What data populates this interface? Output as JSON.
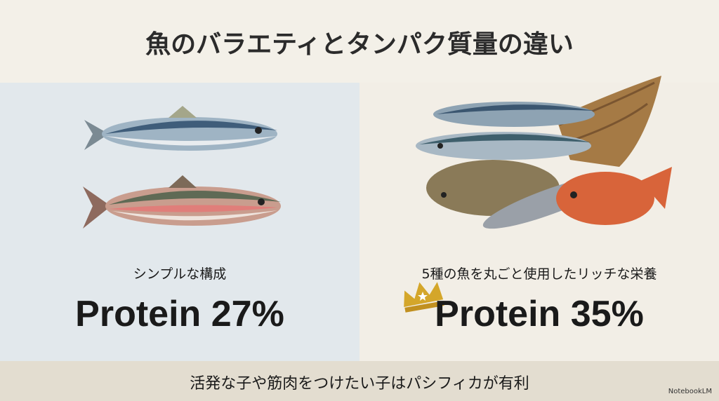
{
  "title": "魚のバラエティとタンパク質量の違い",
  "left": {
    "caption": "シンプルな構成",
    "protein": "Protein 27%"
  },
  "right": {
    "caption": "5種の魚を丸ごと使用したリッチな栄養",
    "protein": "Protein 35%",
    "badge_icon": "crown-icon"
  },
  "footer": {
    "text": "活発な子や筋肉をつけたい子はパシフィカが有利",
    "brand": "NotebookLM"
  },
  "colors": {
    "left_panel": "#e2e8ec",
    "right_panel": "#f2eee6",
    "footer": "#e3ddd0",
    "crown": "#d4a62a"
  }
}
